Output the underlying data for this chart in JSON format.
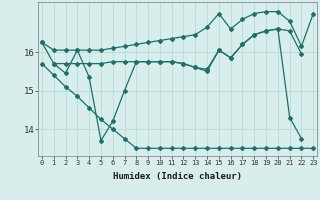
{
  "xlabel": "Humidex (Indice chaleur)",
  "bg_color": "#d7eeec",
  "grid_color": "#b8dcd9",
  "line_color": "#1e7068",
  "ylim": [
    13.3,
    17.3
  ],
  "yticks": [
    14,
    15,
    16
  ],
  "xlim": [
    -0.3,
    23.3
  ],
  "line_top": [
    16.25,
    16.05,
    16.05,
    16.05,
    16.05,
    16.05,
    16.1,
    16.15,
    16.2,
    16.25,
    16.3,
    16.35,
    16.4,
    16.45,
    16.65,
    17.0,
    16.6,
    16.85,
    17.0,
    17.05,
    17.05,
    16.8,
    16.15,
    17.0
  ],
  "line_mid": [
    16.25,
    15.7,
    15.7,
    15.7,
    15.7,
    15.7,
    15.75,
    15.75,
    15.75,
    15.75,
    15.75,
    15.75,
    15.7,
    15.6,
    15.55,
    16.05,
    15.85,
    16.2,
    16.45,
    16.55,
    16.6,
    16.55,
    15.95,
    null
  ],
  "line_diag": [
    15.7,
    15.4,
    15.1,
    14.85,
    14.55,
    14.25,
    14.0,
    13.75,
    13.5,
    13.5,
    13.5,
    13.5,
    13.5,
    13.5,
    13.5,
    13.5,
    13.5,
    13.5,
    13.5,
    13.5,
    13.5,
    13.5,
    13.5,
    13.5
  ],
  "line_zigzag": [
    null,
    15.7,
    15.45,
    16.05,
    15.35,
    13.7,
    14.2,
    15.0,
    15.75,
    15.75,
    15.75,
    15.75,
    15.7,
    15.6,
    15.5,
    16.05,
    15.85,
    16.2,
    16.45,
    16.55,
    16.6,
    14.3,
    13.75,
    null
  ]
}
